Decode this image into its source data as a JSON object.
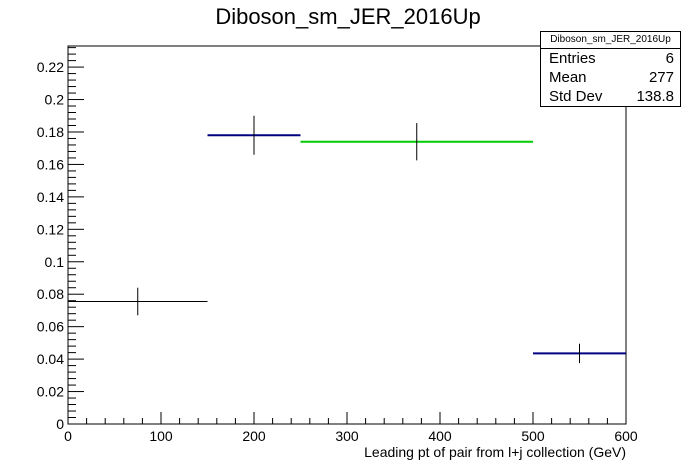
{
  "chart_data": {
    "type": "histogram",
    "title": "Diboson_sm_JER_2016Up",
    "xlabel": "Leading pt of pair from l+j collection (GeV)",
    "ylabel": "",
    "xlim": [
      0,
      600
    ],
    "ylim": [
      0,
      0.233
    ],
    "x_ticks": [
      "0",
      "100",
      "200",
      "300",
      "400",
      "500",
      "600"
    ],
    "y_ticks": [
      "0",
      "0.02",
      "0.04",
      "0.06",
      "0.08",
      "0.1",
      "0.12",
      "0.14",
      "0.16",
      "0.18",
      "0.2",
      "0.22"
    ],
    "bins": [
      {
        "xlow": 0,
        "xhigh": 150,
        "value": 0.0755,
        "error": 0.0085,
        "color": "#000000"
      },
      {
        "xlow": 150,
        "xhigh": 250,
        "value": 0.178,
        "error": 0.012,
        "color": "#000080"
      },
      {
        "xlow": 250,
        "xhigh": 500,
        "value": 0.174,
        "error": 0.0115,
        "color": "#00cc00"
      },
      {
        "xlow": 500,
        "xhigh": 600,
        "value": 0.0435,
        "error": 0.006,
        "color": "#000080"
      }
    ],
    "grid": false,
    "legend_position": "top-right"
  },
  "stats": {
    "title": "Diboson_sm_JER_2016Up",
    "rows": [
      {
        "label": "Entries",
        "value": "6"
      },
      {
        "label": "Mean",
        "value": "277"
      },
      {
        "label": "Std Dev",
        "value": "138.8"
      }
    ]
  }
}
